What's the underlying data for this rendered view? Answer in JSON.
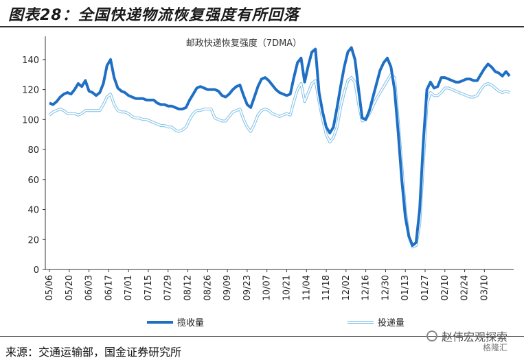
{
  "header": {
    "title": "图表28：全国快递物流恢复强度有所回落"
  },
  "footer": {
    "source": "来源：交通运输部，国金证券研究所"
  },
  "watermark": {
    "text": "赵伟宏观探索",
    "sub": "格隆汇"
  },
  "chart_data": {
    "type": "line",
    "title": "邮政快递恢复强度（7DMA）",
    "xlabel": "",
    "ylabel": "",
    "ylim": [
      0,
      150
    ],
    "yticks": [
      0,
      20,
      40,
      60,
      80,
      100,
      120,
      140
    ],
    "xticks": [
      "05/06",
      "05/20",
      "06/03",
      "06/17",
      "07/01",
      "07/15",
      "07/29",
      "08/12",
      "08/26",
      "09/09",
      "09/23",
      "10/07",
      "10/21",
      "11/04",
      "11/18",
      "12/02",
      "12/16",
      "12/30",
      "01/13",
      "01/27",
      "02/10",
      "02/24",
      "03/10"
    ],
    "grid": false,
    "legend_position": "bottom",
    "series": [
      {
        "name": "揽收量",
        "color": "#1f6fc5",
        "values": [
          [
            0,
            111
          ],
          [
            1,
            110
          ],
          [
            2,
            112
          ],
          [
            3,
            115
          ],
          [
            4,
            117
          ],
          [
            5,
            118
          ],
          [
            6,
            117
          ],
          [
            7,
            120
          ],
          [
            8,
            124
          ],
          [
            9,
            122
          ],
          [
            10,
            126
          ],
          [
            11,
            119
          ],
          [
            12,
            118
          ],
          [
            13,
            116
          ],
          [
            14,
            118
          ],
          [
            15,
            124
          ],
          [
            16,
            136
          ],
          [
            17,
            140
          ],
          [
            18,
            128
          ],
          [
            19,
            121
          ],
          [
            20,
            119
          ],
          [
            21,
            118
          ],
          [
            22,
            116
          ],
          [
            23,
            115
          ],
          [
            24,
            114
          ],
          [
            25,
            114
          ],
          [
            26,
            114
          ],
          [
            27,
            113
          ],
          [
            28,
            113
          ],
          [
            29,
            113
          ],
          [
            30,
            111
          ],
          [
            31,
            110
          ],
          [
            32,
            110
          ],
          [
            33,
            109
          ],
          [
            34,
            109
          ],
          [
            35,
            108
          ],
          [
            36,
            107
          ],
          [
            37,
            107
          ],
          [
            38,
            108
          ],
          [
            39,
            113
          ],
          [
            40,
            117
          ],
          [
            41,
            121
          ],
          [
            42,
            122
          ],
          [
            43,
            121
          ],
          [
            44,
            120
          ],
          [
            45,
            120
          ],
          [
            46,
            120
          ],
          [
            47,
            119
          ],
          [
            48,
            116
          ],
          [
            49,
            115
          ],
          [
            50,
            117
          ],
          [
            51,
            120
          ],
          [
            52,
            122
          ],
          [
            53,
            123
          ],
          [
            54,
            116
          ],
          [
            55,
            110
          ],
          [
            56,
            108
          ],
          [
            57,
            115
          ],
          [
            58,
            122
          ],
          [
            59,
            127
          ],
          [
            60,
            128
          ],
          [
            61,
            126
          ],
          [
            62,
            123
          ],
          [
            63,
            120
          ],
          [
            64,
            118
          ],
          [
            65,
            117
          ],
          [
            66,
            116
          ],
          [
            67,
            117
          ],
          [
            68,
            128
          ],
          [
            69,
            138
          ],
          [
            70,
            141
          ],
          [
            71,
            125
          ],
          [
            72,
            136
          ],
          [
            73,
            145
          ],
          [
            74,
            147
          ],
          [
            75,
            118
          ],
          [
            76,
            105
          ],
          [
            77,
            95
          ],
          [
            78,
            91
          ],
          [
            79,
            95
          ],
          [
            80,
            108
          ],
          [
            81,
            122
          ],
          [
            82,
            135
          ],
          [
            83,
            145
          ],
          [
            84,
            148
          ],
          [
            85,
            140
          ],
          [
            86,
            120
          ],
          [
            87,
            101
          ],
          [
            88,
            100
          ],
          [
            89,
            106
          ],
          [
            90,
            115
          ],
          [
            91,
            124
          ],
          [
            92,
            133
          ],
          [
            93,
            138
          ],
          [
            94,
            141
          ],
          [
            95,
            135
          ],
          [
            96,
            120
          ],
          [
            97,
            92
          ],
          [
            98,
            60
          ],
          [
            99,
            35
          ],
          [
            100,
            22
          ],
          [
            101,
            16
          ],
          [
            102,
            18
          ],
          [
            103,
            40
          ],
          [
            104,
            85
          ],
          [
            105,
            120
          ],
          [
            106,
            125
          ],
          [
            107,
            121
          ],
          [
            108,
            122
          ],
          [
            109,
            128
          ],
          [
            110,
            128
          ],
          [
            111,
            127
          ],
          [
            112,
            126
          ],
          [
            113,
            125
          ],
          [
            114,
            125
          ],
          [
            115,
            126
          ],
          [
            116,
            127
          ],
          [
            117,
            127
          ],
          [
            118,
            126
          ],
          [
            119,
            126
          ],
          [
            120,
            130
          ],
          [
            121,
            134
          ],
          [
            122,
            137
          ],
          [
            123,
            135
          ],
          [
            124,
            132
          ],
          [
            125,
            131
          ],
          [
            126,
            129
          ],
          [
            127,
            132
          ],
          [
            128,
            129
          ]
        ]
      },
      {
        "name": "投递量",
        "color": "#bfe0f5",
        "values": [
          [
            0,
            103
          ],
          [
            1,
            105
          ],
          [
            2,
            106
          ],
          [
            3,
            107
          ],
          [
            4,
            106
          ],
          [
            5,
            104
          ],
          [
            6,
            104
          ],
          [
            7,
            104
          ],
          [
            8,
            103
          ],
          [
            9,
            104
          ],
          [
            10,
            106
          ],
          [
            11,
            106
          ],
          [
            12,
            106
          ],
          [
            13,
            106
          ],
          [
            14,
            106
          ],
          [
            15,
            110
          ],
          [
            16,
            115
          ],
          [
            17,
            117
          ],
          [
            18,
            110
          ],
          [
            19,
            106
          ],
          [
            20,
            105
          ],
          [
            21,
            105
          ],
          [
            22,
            104
          ],
          [
            23,
            102
          ],
          [
            24,
            101
          ],
          [
            25,
            101
          ],
          [
            26,
            100
          ],
          [
            27,
            100
          ],
          [
            28,
            99
          ],
          [
            29,
            98
          ],
          [
            30,
            97
          ],
          [
            31,
            96
          ],
          [
            32,
            96
          ],
          [
            33,
            95
          ],
          [
            34,
            95
          ],
          [
            35,
            93
          ],
          [
            36,
            92
          ],
          [
            37,
            93
          ],
          [
            38,
            95
          ],
          [
            39,
            100
          ],
          [
            40,
            104
          ],
          [
            41,
            106
          ],
          [
            42,
            106
          ],
          [
            43,
            107
          ],
          [
            44,
            107
          ],
          [
            45,
            107
          ],
          [
            46,
            101
          ],
          [
            47,
            100
          ],
          [
            48,
            99
          ],
          [
            49,
            99
          ],
          [
            50,
            102
          ],
          [
            51,
            105
          ],
          [
            52,
            106
          ],
          [
            53,
            107
          ],
          [
            54,
            100
          ],
          [
            55,
            95
          ],
          [
            56,
            92
          ],
          [
            57,
            97
          ],
          [
            58,
            103
          ],
          [
            59,
            106
          ],
          [
            60,
            107
          ],
          [
            61,
            106
          ],
          [
            62,
            104
          ],
          [
            63,
            103
          ],
          [
            64,
            102
          ],
          [
            65,
            103
          ],
          [
            66,
            104
          ],
          [
            67,
            103
          ],
          [
            68,
            112
          ],
          [
            69,
            120
          ],
          [
            70,
            124
          ],
          [
            71,
            112
          ],
          [
            72,
            118
          ],
          [
            73,
            124
          ],
          [
            74,
            126
          ],
          [
            75,
            112
          ],
          [
            76,
            100
          ],
          [
            77,
            90
          ],
          [
            78,
            85
          ],
          [
            79,
            88
          ],
          [
            80,
            95
          ],
          [
            81,
            108
          ],
          [
            82,
            118
          ],
          [
            83,
            126
          ],
          [
            84,
            128
          ],
          [
            85,
            125
          ],
          [
            86,
            110
          ],
          [
            87,
            99
          ],
          [
            88,
            100
          ],
          [
            89,
            104
          ],
          [
            90,
            109
          ],
          [
            91,
            114
          ],
          [
            92,
            118
          ],
          [
            93,
            122
          ],
          [
            94,
            126
          ],
          [
            95,
            130
          ],
          [
            96,
            128
          ],
          [
            97,
            100
          ],
          [
            98,
            70
          ],
          [
            99,
            40
          ],
          [
            100,
            22
          ],
          [
            101,
            15
          ],
          [
            102,
            16
          ],
          [
            103,
            30
          ],
          [
            104,
            70
          ],
          [
            105,
            110
          ],
          [
            106,
            118
          ],
          [
            107,
            116
          ],
          [
            108,
            116
          ],
          [
            109,
            118
          ],
          [
            110,
            121
          ],
          [
            111,
            121
          ],
          [
            112,
            120
          ],
          [
            113,
            119
          ],
          [
            114,
            118
          ],
          [
            115,
            117
          ],
          [
            116,
            116
          ],
          [
            117,
            115
          ],
          [
            118,
            115
          ],
          [
            119,
            116
          ],
          [
            120,
            120
          ],
          [
            121,
            123
          ],
          [
            122,
            124
          ],
          [
            123,
            123
          ],
          [
            124,
            121
          ],
          [
            125,
            119
          ],
          [
            126,
            118
          ],
          [
            127,
            119
          ],
          [
            128,
            118
          ]
        ]
      }
    ]
  }
}
